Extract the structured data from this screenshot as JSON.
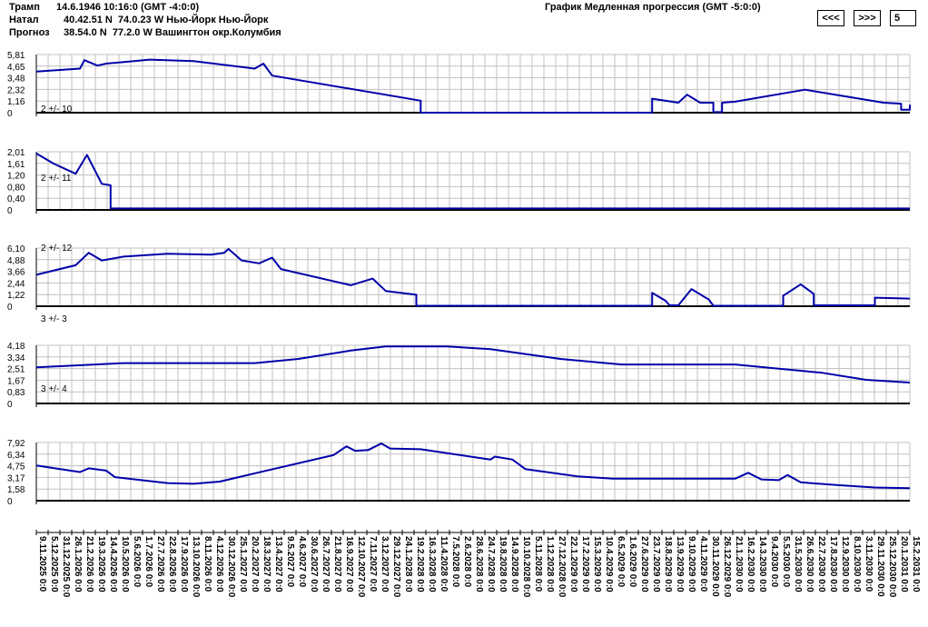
{
  "header": {
    "rows": [
      {
        "label": "Трамп",
        "value": "14.6.1946 10:16:0 (GMT -4:0:0)"
      },
      {
        "label": "Натал",
        "value": "40.42.51 N  74.0.23 W Нью-Йорк Нью-Йорк"
      },
      {
        "label": "Прогноз",
        "value": "38.54.0 N  77.2.0 W Вашингтон окр.Колумбия"
      }
    ],
    "graph_title": "График Медленная прогрессия (GMT -5:0:0)"
  },
  "nav": {
    "prev_label": "<<<",
    "next_label": ">>>",
    "page_value": "5"
  },
  "colors": {
    "line": "#0000aa",
    "grid": "#c0c0c0",
    "axis": "#000000"
  },
  "chart_data": [
    {
      "type": "line",
      "label": "2 +/- 10",
      "yticks": [
        "5,81",
        "4,65",
        "3,48",
        "2,32",
        "1,16",
        "0"
      ],
      "ylim": [
        0,
        5.81
      ],
      "points": [
        [
          0,
          4.1
        ],
        [
          0.05,
          4.4
        ],
        [
          0.055,
          5.25
        ],
        [
          0.07,
          4.7
        ],
        [
          0.08,
          4.9
        ],
        [
          0.13,
          5.3
        ],
        [
          0.18,
          5.15
        ],
        [
          0.25,
          4.4
        ],
        [
          0.26,
          4.9
        ],
        [
          0.27,
          3.7
        ],
        [
          0.44,
          1.2
        ],
        [
          0.44,
          0
        ],
        [
          0.705,
          0
        ],
        [
          0.705,
          1.4
        ],
        [
          0.735,
          1.0
        ],
        [
          0.745,
          1.8
        ],
        [
          0.76,
          1.0
        ],
        [
          0.775,
          1.0
        ],
        [
          0.775,
          0.05
        ],
        [
          0.785,
          0.05
        ],
        [
          0.785,
          1.0
        ],
        [
          0.8,
          1.1
        ],
        [
          0.88,
          2.3
        ],
        [
          0.97,
          1.0
        ],
        [
          0.99,
          0.9
        ],
        [
          0.99,
          0.3
        ],
        [
          1,
          0.3
        ],
        [
          1,
          0.8
        ]
      ]
    },
    {
      "type": "line",
      "label": "2 +/- 11",
      "yticks": [
        "2,01",
        "1,61",
        "1,20",
        "0,80",
        "0,40",
        "0"
      ],
      "ylim": [
        0,
        2.01
      ],
      "points": [
        [
          0,
          1.95
        ],
        [
          0.02,
          1.6
        ],
        [
          0.045,
          1.25
        ],
        [
          0.058,
          1.9
        ],
        [
          0.075,
          0.9
        ],
        [
          0.085,
          0.85
        ],
        [
          0.085,
          0.05
        ],
        [
          1,
          0.05
        ]
      ]
    },
    {
      "type": "line",
      "label": "2 +/- 12",
      "yticks": [
        "6,10",
        "4,88",
        "3,66",
        "2,44",
        "1,22",
        "0"
      ],
      "ylim": [
        0,
        6.1
      ],
      "points": [
        [
          0,
          3.3
        ],
        [
          0.045,
          4.3
        ],
        [
          0.06,
          5.6
        ],
        [
          0.075,
          4.8
        ],
        [
          0.1,
          5.2
        ],
        [
          0.15,
          5.5
        ],
        [
          0.2,
          5.4
        ],
        [
          0.215,
          5.6
        ],
        [
          0.22,
          6.0
        ],
        [
          0.235,
          4.8
        ],
        [
          0.255,
          4.5
        ],
        [
          0.27,
          5.1
        ],
        [
          0.28,
          3.9
        ],
        [
          0.36,
          2.2
        ],
        [
          0.385,
          2.9
        ],
        [
          0.4,
          1.6
        ],
        [
          0.435,
          1.2
        ],
        [
          0.435,
          0.05
        ],
        [
          0.705,
          0.05
        ],
        [
          0.705,
          1.4
        ],
        [
          0.72,
          0.6
        ],
        [
          0.725,
          0.1
        ],
        [
          0.735,
          0.1
        ],
        [
          0.75,
          1.8
        ],
        [
          0.77,
          0.7
        ],
        [
          0.775,
          0.05
        ],
        [
          0.855,
          0.05
        ],
        [
          0.855,
          1.1
        ],
        [
          0.875,
          2.3
        ],
        [
          0.89,
          1.3
        ],
        [
          0.89,
          0.1
        ],
        [
          0.96,
          0.1
        ],
        [
          0.96,
          0.9
        ],
        [
          1,
          0.8
        ]
      ]
    },
    {
      "type": "line",
      "label": "3 +/- 3",
      "yticks": [
        "4,18",
        "3,34",
        "2,51",
        "1,67",
        "0,83",
        "0"
      ],
      "ylim": [
        0,
        4.18
      ],
      "points": [
        [
          0,
          2.6
        ],
        [
          0.1,
          2.9
        ],
        [
          0.15,
          2.9
        ],
        [
          0.25,
          2.9
        ],
        [
          0.3,
          3.2
        ],
        [
          0.36,
          3.8
        ],
        [
          0.4,
          4.1
        ],
        [
          0.47,
          4.1
        ],
        [
          0.52,
          3.9
        ],
        [
          0.6,
          3.2
        ],
        [
          0.67,
          2.8
        ],
        [
          0.8,
          2.8
        ],
        [
          0.85,
          2.5
        ],
        [
          0.9,
          2.2
        ],
        [
          0.95,
          1.7
        ],
        [
          1,
          1.5
        ]
      ]
    },
    {
      "type": "line",
      "label": "3 +/- 4",
      "yticks": [
        "7,92",
        "6,34",
        "4,75",
        "3,17",
        "1,58",
        "0"
      ],
      "ylim": [
        0,
        7.92
      ],
      "points": [
        [
          0,
          4.8
        ],
        [
          0.05,
          3.9
        ],
        [
          0.06,
          4.4
        ],
        [
          0.08,
          4.1
        ],
        [
          0.09,
          3.2
        ],
        [
          0.15,
          2.4
        ],
        [
          0.18,
          2.3
        ],
        [
          0.21,
          2.6
        ],
        [
          0.26,
          4.0
        ],
        [
          0.34,
          6.2
        ],
        [
          0.355,
          7.4
        ],
        [
          0.365,
          6.8
        ],
        [
          0.38,
          6.9
        ],
        [
          0.395,
          7.8
        ],
        [
          0.405,
          7.1
        ],
        [
          0.44,
          7.0
        ],
        [
          0.52,
          5.6
        ],
        [
          0.525,
          6.0
        ],
        [
          0.545,
          5.6
        ],
        [
          0.56,
          4.3
        ],
        [
          0.62,
          3.3
        ],
        [
          0.66,
          3.0
        ],
        [
          0.8,
          3.0
        ],
        [
          0.815,
          3.8
        ],
        [
          0.83,
          2.9
        ],
        [
          0.85,
          2.8
        ],
        [
          0.86,
          3.5
        ],
        [
          0.875,
          2.5
        ],
        [
          0.92,
          2.1
        ],
        [
          0.96,
          1.8
        ],
        [
          1,
          1.7
        ]
      ]
    }
  ],
  "x_dates": [
    "9.11.2025 0:0",
    "5.12.2025 0:0",
    "31.12.2025 0:0",
    "26.1.2026 0:0",
    "21.2.2026 0:0",
    "19.3.2026 0:0",
    "14.4.2026 0:0",
    "10.5.2026 0:0",
    "5.6.2026 0:0",
    "1.7.2026 0:0",
    "27.7.2026 0:0",
    "22.8.2026 0:0",
    "17.9.2026 0:0",
    "13.10.2026 0:0",
    "8.11.2026 0:0",
    "4.12.2026 0:0",
    "30.12.2026 0:0",
    "25.1.2027 0:0",
    "20.2.2027 0:0",
    "18.3.2027 0:0",
    "13.4.2027 0:0",
    "9.5.2027 0:0",
    "4.6.2027 0:0",
    "30.6.2027 0:0",
    "26.7.2027 0:0",
    "21.8.2027 0:0",
    "16.9.2027 0:0",
    "12.10.2027 0:0",
    "7.11.2027 0:0",
    "3.12.2027 0:0",
    "29.12.2027 0:0",
    "24.1.2028 0:0",
    "19.2.2028 0:0",
    "16.3.2028 0:0",
    "11.4.2028 0:0",
    "7.5.2028 0:0",
    "2.6.2028 0:0",
    "28.6.2028 0:0",
    "24.7.2028 0:0",
    "19.8.2028 0:0",
    "14.9.2028 0:0",
    "10.10.2028 0:0",
    "5.11.2028 0:0",
    "1.12.2028 0:0",
    "27.12.2028 0:0",
    "22.1.2029 0:0",
    "17.2.2029 0:0",
    "15.3.2029 0:0",
    "10.4.2029 0:0",
    "6.5.2029 0:0",
    "1.6.2029 0:0",
    "27.6.2029 0:0",
    "23.7.2029 0:0",
    "18.8.2029 0:0",
    "13.9.2029 0:0",
    "9.10.2029 0:0",
    "4.11.2029 0:0",
    "30.11.2029 0:0",
    "26.12.2029 0:0",
    "21.1.2030 0:0",
    "16.2.2030 0:0",
    "14.3.2030 0:0",
    "9.4.2030 0:0",
    "5.5.2030 0:0",
    "31.5.2030 0:0",
    "26.6.2030 0:0",
    "22.7.2030 0:0",
    "17.8.2030 0:0",
    "12.9.2030 0:0",
    "8.10.2030 0:0",
    "3.11.2030 0:0",
    "29.11.2030 0:0",
    "25.12.2030 0:0",
    "20.1.2031 0:0",
    "15.2.2031 0:0"
  ]
}
